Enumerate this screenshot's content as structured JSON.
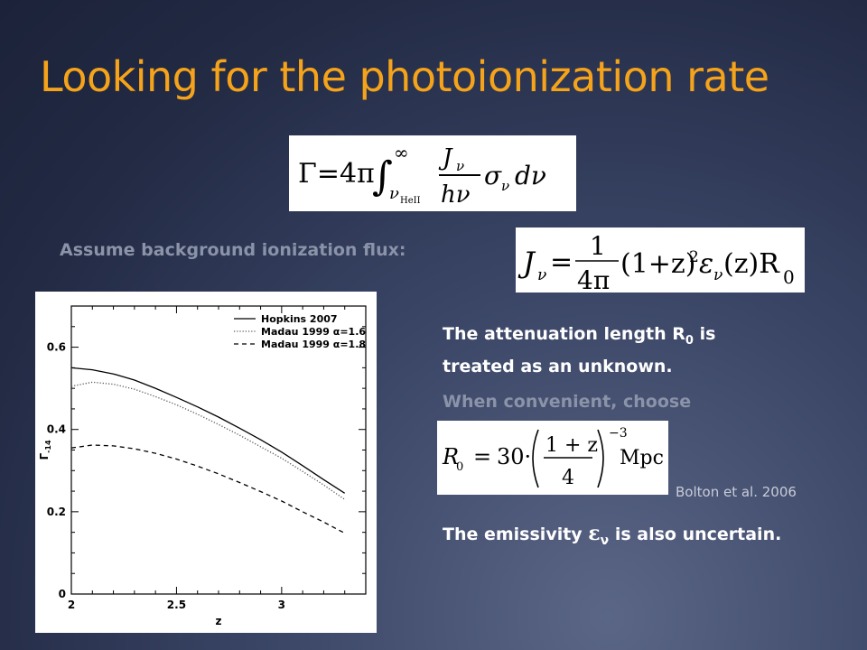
{
  "slide": {
    "title": "Looking for the photoionization rate",
    "assume_label": "Assume background ionization flux:",
    "attenuation_note_part1": "The attenuation length R",
    "attenuation_sub": "0",
    "attenuation_note_part2": " is",
    "attenuation_note_line2": "treated as an unknown.",
    "convenient_label": "When convenient, choose",
    "citation": "Bolton et al. 2006",
    "emissivity_part1": "The emissivity ",
    "emissivity_symbol": "ε",
    "emissivity_sub": "ν",
    "emissivity_part2": " is also uncertain."
  },
  "equations": {
    "gamma": {
      "lhs": "Γ=4π",
      "integral": "∫",
      "upper": "∞",
      "lower": "ν",
      "lower_sub": "HeII",
      "num": "J",
      "num_sub": "ν",
      "den": "hν",
      "tail": "σ",
      "tail_sub": "ν",
      "dnu": "dν"
    },
    "flux": {
      "lhs": "J",
      "lhs_sub": "ν",
      "eq": "=",
      "num": "1",
      "den": "4π",
      "body1": "(1+z)",
      "sup": "2",
      "eps": "ε",
      "eps_sub": "ν",
      "body2": "(z)R",
      "body2_sub": "0"
    },
    "r0": {
      "lhs": "R",
      "lhs_sub": "0",
      "eq": "=",
      "coef": "30·",
      "num": "1 + z",
      "den": "4",
      "exp": "−3",
      "unit": "Mpc"
    }
  },
  "chart_data": {
    "type": "line",
    "x": [
      2.0,
      2.1,
      2.2,
      2.3,
      2.4,
      2.5,
      2.6,
      2.7,
      2.8,
      2.9,
      3.0,
      3.1,
      3.2,
      3.3
    ],
    "series": [
      {
        "name": "Hopkins 2007",
        "style": "solid",
        "values": [
          0.55,
          0.545,
          0.535,
          0.52,
          0.5,
          0.478,
          0.455,
          0.43,
          0.403,
          0.375,
          0.345,
          0.312,
          0.278,
          0.245
        ]
      },
      {
        "name": "Madau 1999 α=1.6",
        "style": "dotted",
        "values": [
          0.505,
          0.515,
          0.51,
          0.498,
          0.48,
          0.46,
          0.437,
          0.412,
          0.386,
          0.358,
          0.33,
          0.298,
          0.265,
          0.23
        ]
      },
      {
        "name": "Madau 1999 α=1.8",
        "style": "dashed",
        "values": [
          0.355,
          0.362,
          0.36,
          0.353,
          0.342,
          0.328,
          0.311,
          0.292,
          0.271,
          0.249,
          0.226,
          0.2,
          0.175,
          0.148
        ]
      }
    ],
    "xlabel": "z",
    "ylabel": "Γ",
    "ylabel_sub": "-14",
    "xlim": [
      2,
      3.4
    ],
    "ylim": [
      0,
      0.7
    ],
    "xticks": [
      2,
      2.5,
      3
    ],
    "xtick_labels": [
      "2",
      "2.5",
      "3"
    ],
    "yticks": [
      0,
      0.2,
      0.4,
      0.6
    ],
    "ytick_labels": [
      "0",
      "0.2",
      "0.4",
      "0.6"
    ],
    "legend_position": "top-right",
    "grid": false
  }
}
